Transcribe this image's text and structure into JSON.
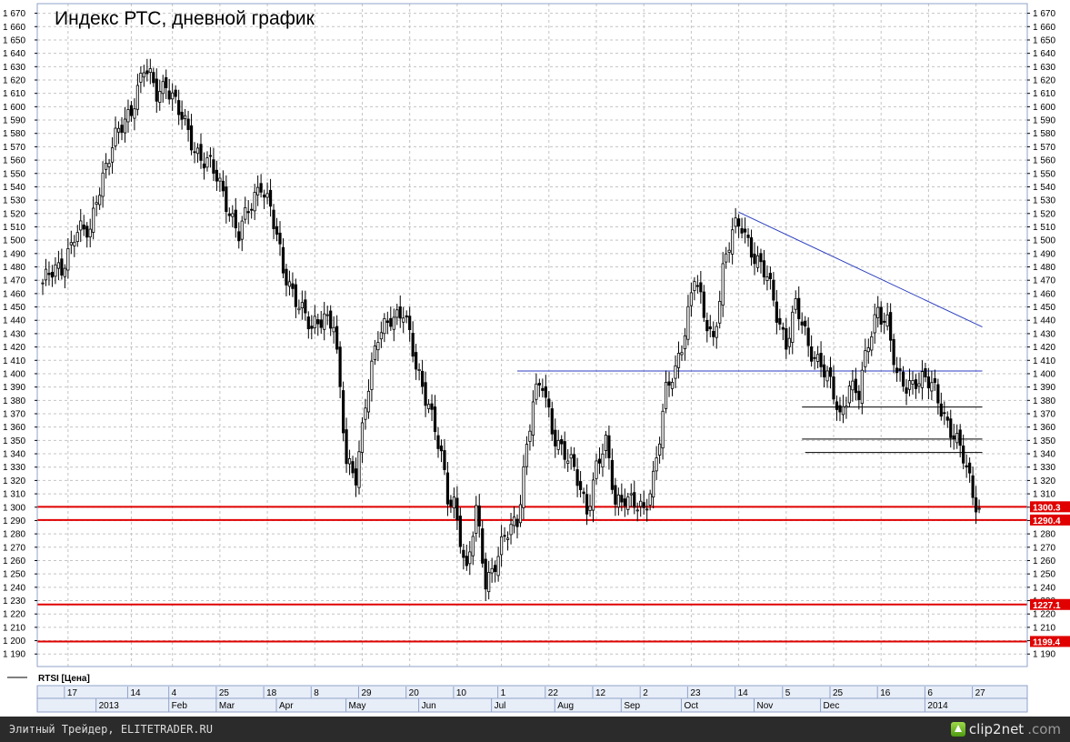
{
  "footer": {
    "source_text": "Элитный Трейдер, ELITETRADER.RU",
    "logo_text": "clip2net",
    "logo_suffix": ".com"
  },
  "chart_data": {
    "type": "candlestick",
    "title": "Индекс РТС, дневной график",
    "legend": "RTSI [Цена]",
    "ylim": [
      1183,
      1674
    ],
    "y_ticks": [
      "1 670",
      "1 660",
      "1 650",
      "1 640",
      "1 630",
      "1 620",
      "1 610",
      "1 600",
      "1 590",
      "1 580",
      "1 570",
      "1 560",
      "1 550",
      "1 540",
      "1 530",
      "1 520",
      "1 510",
      "1 500",
      "1 490",
      "1 480",
      "1 470",
      "1 460",
      "1 450",
      "1 440",
      "1 430",
      "1 420",
      "1 410",
      "1 400",
      "1 390",
      "1 380",
      "1 370",
      "1 360",
      "1 350",
      "1 340",
      "1 330",
      "1 320",
      "1 310",
      "1 300",
      "1 290",
      "1 280",
      "1 270",
      "1 260",
      "1 250",
      "1 240",
      "1 230",
      "1 220",
      "1 210",
      "1 200",
      "1 190"
    ],
    "y_tick_values": [
      1670,
      1660,
      1650,
      1640,
      1630,
      1620,
      1610,
      1600,
      1590,
      1580,
      1570,
      1560,
      1550,
      1540,
      1530,
      1520,
      1510,
      1500,
      1490,
      1480,
      1470,
      1460,
      1450,
      1440,
      1430,
      1420,
      1410,
      1400,
      1390,
      1380,
      1370,
      1360,
      1350,
      1340,
      1330,
      1320,
      1310,
      1300,
      1290,
      1280,
      1270,
      1260,
      1250,
      1240,
      1230,
      1220,
      1210,
      1200,
      1190
    ],
    "x_day_labels": [
      "17",
      "14",
      "4",
      "25",
      "18",
      "8",
      "29",
      "20",
      "10",
      "1",
      "22",
      "12",
      "2",
      "23",
      "14",
      "5",
      "25",
      "16",
      "6",
      "27"
    ],
    "x_day_label_bar_index": [
      8,
      28,
      41,
      56,
      71,
      86,
      101,
      116,
      131,
      145,
      160,
      175,
      190,
      205,
      220,
      235,
      250,
      265,
      280,
      295
    ],
    "x_month_labels": [
      "2013",
      "Feb",
      "Mar",
      "Apr",
      "May",
      "Jun",
      "Jul",
      "Aug",
      "Sep",
      "Oct",
      "Nov",
      "Dec",
      "2014"
    ],
    "x_month_label_bar_index": [
      18,
      41,
      56,
      75,
      97,
      120,
      143,
      163,
      184,
      203,
      226,
      247,
      280
    ],
    "grid": true,
    "horizontal_levels": [
      {
        "value": 1300.3,
        "label": "1300.3",
        "color": "#e00000"
      },
      {
        "value": 1290.4,
        "label": "1290.4",
        "color": "#e00000"
      },
      {
        "value": 1227.1,
        "label": "1227.1",
        "color": "#e00000"
      },
      {
        "value": 1199.4,
        "label": "1199.4",
        "color": "#e00000"
      }
    ],
    "trendlines": [
      {
        "color": "#2b3fbf",
        "from": {
          "bar": 150,
          "value": 1402
        },
        "to": {
          "bar": 297,
          "value": 1402
        }
      },
      {
        "color": "#2b3fbf",
        "from": {
          "bar": 220,
          "value": 1521
        },
        "to": {
          "bar": 297,
          "value": 1435
        }
      },
      {
        "color": "#000000",
        "from": {
          "bar": 240,
          "value": 1375
        },
        "to": {
          "bar": 297,
          "value": 1375
        }
      },
      {
        "color": "#000000",
        "from": {
          "bar": 240,
          "value": 1351
        },
        "to": {
          "bar": 297,
          "value": 1351
        }
      },
      {
        "color": "#000000",
        "from": {
          "bar": 241,
          "value": 1341
        },
        "to": {
          "bar": 297,
          "value": 1341
        }
      }
    ],
    "anchors": [
      [
        0,
        1468
      ],
      [
        6,
        1480
      ],
      [
        10,
        1505
      ],
      [
        15,
        1505
      ],
      [
        17,
        1535
      ],
      [
        20,
        1556
      ],
      [
        24,
        1580
      ],
      [
        28,
        1600
      ],
      [
        32,
        1628
      ],
      [
        36,
        1610
      ],
      [
        39,
        1620
      ],
      [
        43,
        1595
      ],
      [
        48,
        1570
      ],
      [
        53,
        1555
      ],
      [
        58,
        1530
      ],
      [
        62,
        1505
      ],
      [
        66,
        1525
      ],
      [
        69,
        1545
      ],
      [
        72,
        1525
      ],
      [
        76,
        1475
      ],
      [
        81,
        1455
      ],
      [
        85,
        1430
      ],
      [
        89,
        1445
      ],
      [
        92,
        1440
      ],
      [
        96,
        1330
      ],
      [
        99,
        1325
      ],
      [
        102,
        1380
      ],
      [
        106,
        1425
      ],
      [
        110,
        1445
      ],
      [
        114,
        1445
      ],
      [
        118,
        1405
      ],
      [
        122,
        1380
      ],
      [
        126,
        1335
      ],
      [
        128,
        1305
      ],
      [
        130,
        1305
      ],
      [
        132,
        1280
      ],
      [
        134,
        1250
      ],
      [
        137,
        1295
      ],
      [
        140,
        1245
      ],
      [
        143,
        1260
      ],
      [
        146,
        1275
      ],
      [
        150,
        1290
      ],
      [
        152,
        1330
      ],
      [
        155,
        1380
      ],
      [
        158,
        1390
      ],
      [
        161,
        1360
      ],
      [
        165,
        1340
      ],
      [
        169,
        1320
      ],
      [
        172,
        1300
      ],
      [
        175,
        1330
      ],
      [
        178,
        1345
      ],
      [
        181,
        1305
      ],
      [
        184,
        1310
      ],
      [
        187,
        1300
      ],
      [
        190,
        1295
      ],
      [
        193,
        1325
      ],
      [
        197,
        1385
      ],
      [
        200,
        1400
      ],
      [
        203,
        1435
      ],
      [
        206,
        1475
      ],
      [
        209,
        1440
      ],
      [
        212,
        1425
      ],
      [
        215,
        1480
      ],
      [
        218,
        1505
      ],
      [
        221,
        1510
      ],
      [
        225,
        1490
      ],
      [
        229,
        1470
      ],
      [
        232,
        1445
      ],
      [
        235,
        1425
      ],
      [
        238,
        1450
      ],
      [
        242,
        1420
      ],
      [
        246,
        1410
      ],
      [
        249,
        1390
      ],
      [
        252,
        1365
      ],
      [
        255,
        1395
      ],
      [
        258,
        1385
      ],
      [
        261,
        1420
      ],
      [
        264,
        1450
      ],
      [
        267,
        1440
      ],
      [
        270,
        1395
      ],
      [
        273,
        1390
      ],
      [
        276,
        1398
      ],
      [
        279,
        1395
      ],
      [
        282,
        1385
      ],
      [
        285,
        1370
      ],
      [
        288,
        1355
      ],
      [
        291,
        1335
      ],
      [
        294,
        1310
      ],
      [
        296,
        1300
      ]
    ]
  }
}
